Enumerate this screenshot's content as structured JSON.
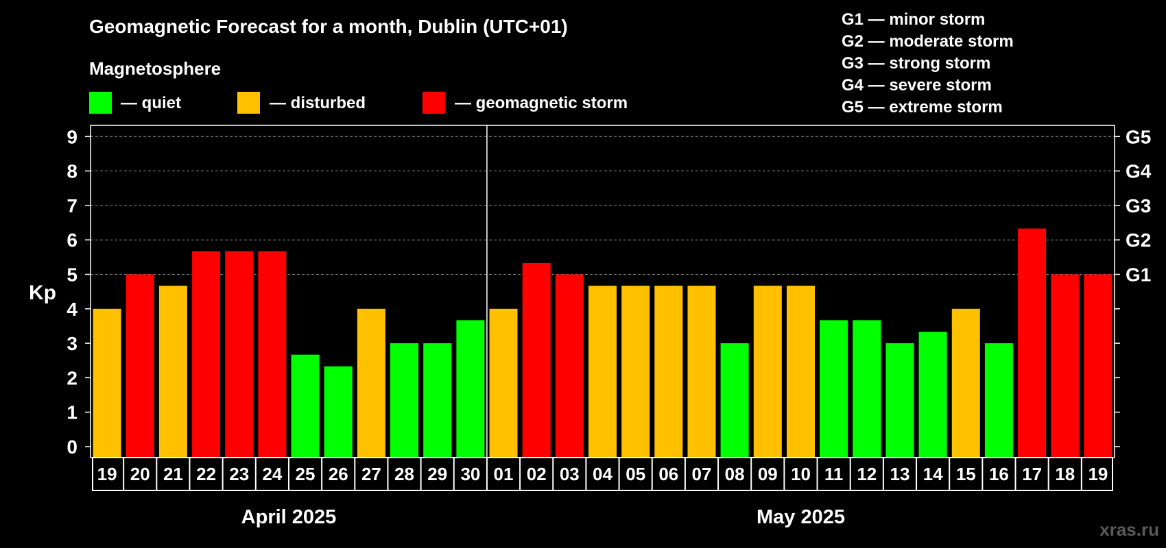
{
  "chart_data": {
    "type": "bar",
    "title": "Geomagnetic Forecast for a month, Dublin (UTC+01)",
    "subtitle": "Magnetosphere",
    "ylabel": "Kp",
    "ylim": [
      0,
      9
    ],
    "yticks": [
      "0",
      "1",
      "2",
      "3",
      "4",
      "5",
      "6",
      "7",
      "8",
      "9"
    ],
    "right_ticks": [
      {
        "value": 5,
        "label": "G1"
      },
      {
        "value": 6,
        "label": "G2"
      },
      {
        "value": 7,
        "label": "G3"
      },
      {
        "value": 8,
        "label": "G4"
      },
      {
        "value": 9,
        "label": "G5"
      }
    ],
    "legend": [
      {
        "label": "— quiet",
        "color": "#00ff00"
      },
      {
        "label": "— disturbed",
        "color": "#ffc000"
      },
      {
        "label": "— geomagnetic storm",
        "color": "#ff0000"
      }
    ],
    "storm_scale": [
      "G1 — minor storm",
      "G2 — moderate storm",
      "G3 — strong storm",
      "G4 — severe storm",
      "G5 — extreme storm"
    ],
    "months": [
      {
        "label": "April 2025",
        "days": 12
      },
      {
        "label": "May 2025",
        "days": 19
      }
    ],
    "categories": [
      "19",
      "20",
      "21",
      "22",
      "23",
      "24",
      "25",
      "26",
      "27",
      "28",
      "29",
      "30",
      "01",
      "02",
      "03",
      "04",
      "05",
      "06",
      "07",
      "08",
      "09",
      "10",
      "11",
      "12",
      "13",
      "14",
      "15",
      "16",
      "17",
      "18",
      "19"
    ],
    "values": [
      4,
      5,
      4.67,
      5.67,
      5.67,
      5.67,
      2.67,
      2.33,
      4,
      3,
      3,
      3.67,
      4,
      5.33,
      5,
      4.67,
      4.67,
      4.67,
      4.67,
      3,
      4.67,
      4.67,
      3.67,
      3.67,
      3,
      3.33,
      4,
      3,
      6.33,
      5,
      5
    ],
    "status": [
      "disturbed",
      "storm",
      "disturbed",
      "storm",
      "storm",
      "storm",
      "quiet",
      "quiet",
      "disturbed",
      "quiet",
      "quiet",
      "quiet",
      "disturbed",
      "storm",
      "storm",
      "disturbed",
      "disturbed",
      "disturbed",
      "disturbed",
      "quiet",
      "disturbed",
      "disturbed",
      "quiet",
      "quiet",
      "quiet",
      "quiet",
      "disturbed",
      "quiet",
      "storm",
      "storm",
      "storm"
    ],
    "colors": {
      "quiet": "#00ff00",
      "disturbed": "#ffc000",
      "storm": "#ff0000"
    }
  },
  "watermark": "xras.ru"
}
